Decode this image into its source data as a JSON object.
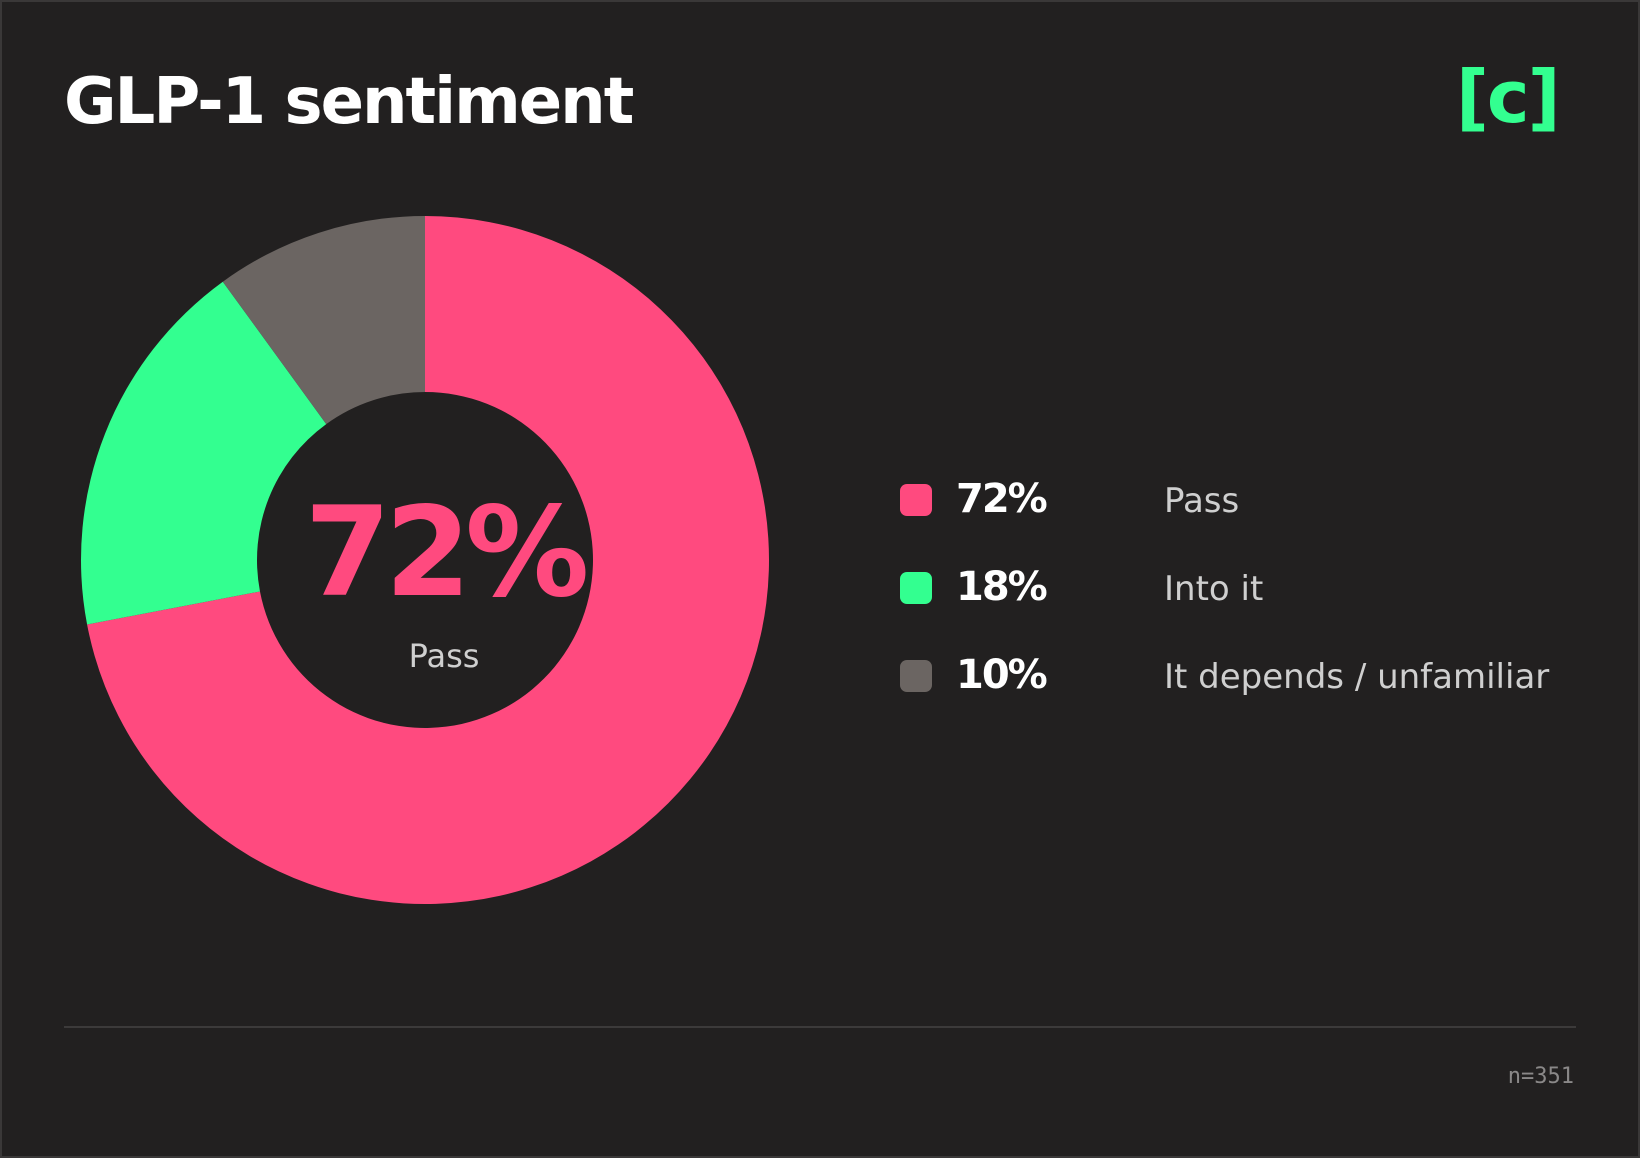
{
  "header": {
    "title": "GLP-1 sentiment",
    "logo_text": "[c]"
  },
  "center": {
    "value": "72%",
    "label": "Pass"
  },
  "legend": [
    {
      "pct": "72%",
      "label": "Pass",
      "color": "#ff4a7f"
    },
    {
      "pct": "18%",
      "label": "Into it",
      "color": "#33ff90"
    },
    {
      "pct": "10%",
      "label": "It depends / unfamiliar",
      "color": "#6b6562"
    }
  ],
  "footer": {
    "note": "n=351"
  },
  "chart_data": {
    "type": "pie",
    "donut": true,
    "title": "GLP-1 sentiment",
    "categories": [
      "Pass",
      "Into it",
      "It depends / unfamiliar"
    ],
    "values": [
      72,
      18,
      10
    ],
    "colors": [
      "#ff4a7f",
      "#33ff90",
      "#6b6562"
    ],
    "start": "top",
    "direction": "clockwise",
    "legend_position": "right",
    "sample_size": 351
  }
}
